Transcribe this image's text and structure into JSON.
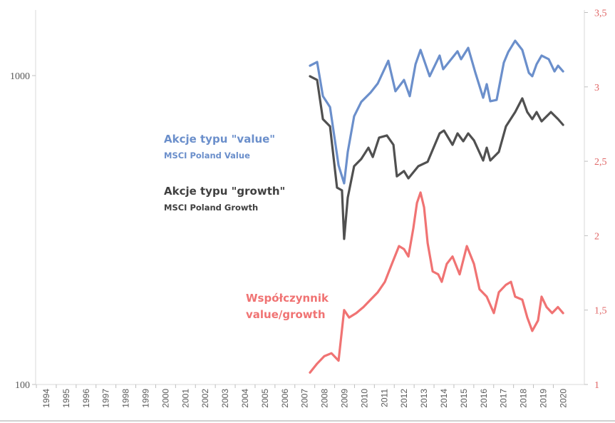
{
  "chart_data": {
    "type": "line",
    "title": "",
    "xlabel": "",
    "ylabel": "",
    "x_tick_labels": [
      "1994",
      "1995",
      "1996",
      "1997",
      "1998",
      "1999",
      "2000",
      "2001",
      "2002",
      "2003",
      "2004",
      "2005",
      "2006",
      "2007",
      "2008",
      "2009",
      "2010",
      "2011",
      "2012",
      "2013",
      "2014",
      "2015",
      "2016",
      "2017",
      "2018",
      "2019",
      "2020"
    ],
    "xlim": [
      1994,
      2020.7
    ],
    "y_left": {
      "scale": "log",
      "ylim": [
        100,
        1620
      ],
      "tick_labels": [
        "100",
        "1000"
      ],
      "ticks": [
        100,
        1000
      ]
    },
    "y_right": {
      "scale": "linear",
      "ylim": [
        1,
        3.5
      ],
      "tick_labels": [
        "1",
        "1,5",
        "2",
        "2,5",
        "3",
        "3,5"
      ],
      "ticks": [
        1,
        1.5,
        2,
        2.5,
        3,
        3.5
      ],
      "color": "#e06666"
    },
    "grid": false,
    "legend": "inline annotations",
    "annotations": {
      "value_title": "Akcje typu \"value\"",
      "value_sub": "MSCI Poland Value",
      "growth_title": "Akcje typu \"growth\"",
      "growth_sub": "MSCI Poland Growth",
      "ratio_line1": "Współczynnik",
      "ratio_line2": "value/growth"
    },
    "series": [
      {
        "key": "value",
        "axis": "left",
        "color": "#6b8fcb",
        "x": [
          2007.26,
          2007.62,
          2007.91,
          2008.27,
          2008.7,
          2008.98,
          2009.16,
          2009.48,
          2009.84,
          2010.31,
          2010.67,
          2011.2,
          2011.56,
          2011.99,
          2012.28,
          2012.57,
          2012.82,
          2013.28,
          2013.78,
          2013.96,
          2014.68,
          2014.86,
          2015.22,
          2015.58,
          2015.97,
          2016.15,
          2016.33,
          2016.65,
          2017.01,
          2017.23,
          2017.58,
          2017.94,
          2018.27,
          2018.44,
          2018.66,
          2018.91,
          2019.27,
          2019.56,
          2019.74,
          2019.99
        ],
        "y": [
          1077,
          1107,
          858,
          791,
          512,
          448,
          566,
          738,
          822,
          881,
          943,
          1117,
          890,
          968,
          858,
          1089,
          1211,
          995,
          1161,
          1049,
          1199,
          1130,
          1230,
          1021,
          848,
          938,
          826,
          834,
          1102,
          1191,
          1297,
          1211,
          1021,
          995,
          1089,
          1161,
          1130,
          1032,
          1077,
          1032
        ]
      },
      {
        "key": "growth",
        "axis": "left",
        "color": "#505050",
        "x": [
          2007.26,
          2007.62,
          2007.91,
          2008.27,
          2008.62,
          2008.87,
          2008.98,
          2009.16,
          2009.48,
          2009.84,
          2010.2,
          2010.42,
          2010.74,
          2011.13,
          2011.46,
          2011.63,
          2011.99,
          2012.21,
          2012.71,
          2013.18,
          2013.43,
          2013.78,
          2014.0,
          2014.43,
          2014.68,
          2014.97,
          2015.22,
          2015.51,
          2015.97,
          2016.15,
          2016.33,
          2016.76,
          2017.12,
          2017.58,
          2017.94,
          2018.19,
          2018.44,
          2018.66,
          2018.91,
          2019.38,
          2019.74,
          2019.99
        ],
        "y": [
          995,
          968,
          723,
          685,
          434,
          425,
          296,
          403,
          509,
          537,
          584,
          545,
          630,
          640,
          597,
          472,
          491,
          465,
          509,
          526,
          575,
          650,
          664,
          597,
          650,
          613,
          650,
          617,
          531,
          584,
          531,
          566,
          685,
          762,
          844,
          762,
          723,
          762,
          711,
          762,
          723,
          693
        ]
      },
      {
        "key": "ratio",
        "axis": "right",
        "color": "#f07373",
        "x": [
          2007.26,
          2007.62,
          2007.98,
          2008.34,
          2008.7,
          2008.98,
          2009.23,
          2009.59,
          2009.95,
          2010.31,
          2010.67,
          2011.03,
          2011.38,
          2011.74,
          2011.99,
          2012.21,
          2012.46,
          2012.64,
          2012.82,
          2013.0,
          2013.18,
          2013.43,
          2013.71,
          2013.89,
          2014.14,
          2014.43,
          2014.79,
          2015.15,
          2015.51,
          2015.79,
          2016.15,
          2016.51,
          2016.76,
          2017.12,
          2017.37,
          2017.58,
          2017.94,
          2018.19,
          2018.44,
          2018.73,
          2018.91,
          2019.16,
          2019.44,
          2019.73,
          2019.99
        ],
        "y": [
          1.08,
          1.14,
          1.19,
          1.21,
          1.16,
          1.5,
          1.45,
          1.48,
          1.52,
          1.57,
          1.62,
          1.69,
          1.81,
          1.93,
          1.91,
          1.86,
          2.05,
          2.22,
          2.29,
          2.19,
          1.95,
          1.76,
          1.74,
          1.69,
          1.81,
          1.86,
          1.74,
          1.93,
          1.81,
          1.64,
          1.59,
          1.48,
          1.62,
          1.67,
          1.69,
          1.59,
          1.57,
          1.45,
          1.36,
          1.43,
          1.59,
          1.52,
          1.48,
          1.52,
          1.48
        ]
      }
    ]
  }
}
